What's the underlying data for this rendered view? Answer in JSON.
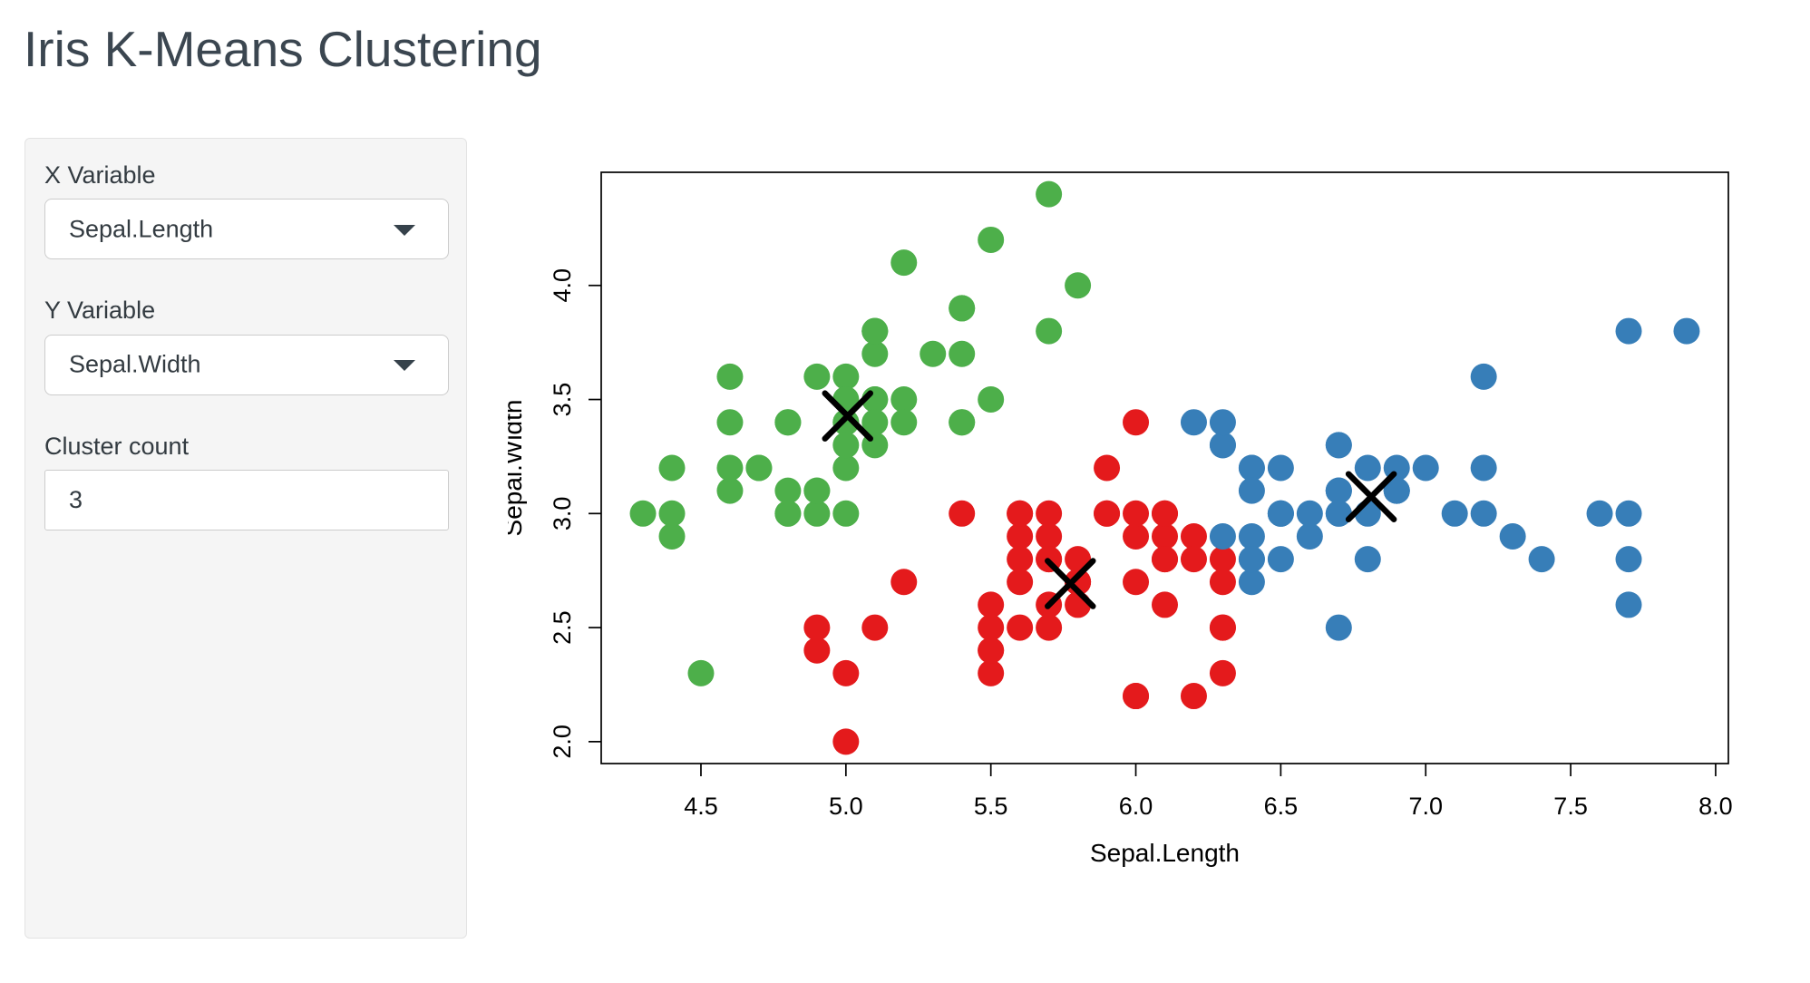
{
  "page": {
    "title": "Iris K-Means Clustering"
  },
  "sidebar": {
    "x_variable": {
      "label": "X Variable",
      "value": "Sepal.Length"
    },
    "y_variable": {
      "label": "Y Variable",
      "value": "Sepal.Width"
    },
    "cluster_count": {
      "label": "Cluster count",
      "value": "3"
    }
  },
  "chart_data": {
    "type": "scatter",
    "title": "",
    "xlabel": "Sepal.Length",
    "ylabel": "Sepal.Width",
    "xlim": [
      4.156,
      8.044
    ],
    "ylim": [
      1.904,
      4.496
    ],
    "x_ticks": [
      "4.5",
      "5.0",
      "5.5",
      "6.0",
      "6.5",
      "7.0",
      "7.5",
      "8.0"
    ],
    "y_ticks": [
      "2.0",
      "2.5",
      "3.0",
      "3.5",
      "4.0"
    ],
    "grid": false,
    "legend": "none",
    "point_radius_px": 14.5,
    "axis_color": "#000000",
    "series": [
      {
        "name": "cluster-green",
        "color": "#4DAF4A",
        "points": [
          [
            5.1,
            3.5
          ],
          [
            4.9,
            3.0
          ],
          [
            4.7,
            3.2
          ],
          [
            4.6,
            3.1
          ],
          [
            5.0,
            3.6
          ],
          [
            5.4,
            3.9
          ],
          [
            4.6,
            3.4
          ],
          [
            5.0,
            3.4
          ],
          [
            4.4,
            2.9
          ],
          [
            4.9,
            3.1
          ],
          [
            5.4,
            3.7
          ],
          [
            4.8,
            3.4
          ],
          [
            4.8,
            3.0
          ],
          [
            4.3,
            3.0
          ],
          [
            5.8,
            4.0
          ],
          [
            5.7,
            4.4
          ],
          [
            5.4,
            3.9
          ],
          [
            5.1,
            3.5
          ],
          [
            5.7,
            3.8
          ],
          [
            5.1,
            3.8
          ],
          [
            5.4,
            3.4
          ],
          [
            5.1,
            3.7
          ],
          [
            4.6,
            3.6
          ],
          [
            5.1,
            3.3
          ],
          [
            4.8,
            3.4
          ],
          [
            5.0,
            3.0
          ],
          [
            5.0,
            3.4
          ],
          [
            5.2,
            3.5
          ],
          [
            5.2,
            3.4
          ],
          [
            4.7,
            3.2
          ],
          [
            4.8,
            3.1
          ],
          [
            5.4,
            3.4
          ],
          [
            5.2,
            4.1
          ],
          [
            5.5,
            4.2
          ],
          [
            4.9,
            3.1
          ],
          [
            5.0,
            3.2
          ],
          [
            5.5,
            3.5
          ],
          [
            4.9,
            3.6
          ],
          [
            4.4,
            3.0
          ],
          [
            5.1,
            3.4
          ],
          [
            5.0,
            3.5
          ],
          [
            4.5,
            2.3
          ],
          [
            4.4,
            3.2
          ],
          [
            5.0,
            3.5
          ],
          [
            5.1,
            3.8
          ],
          [
            4.8,
            3.0
          ],
          [
            5.1,
            3.8
          ],
          [
            4.6,
            3.2
          ],
          [
            5.3,
            3.7
          ],
          [
            5.0,
            3.3
          ]
        ]
      },
      {
        "name": "cluster-red",
        "color": "#E41A1C",
        "points": [
          [
            5.5,
            2.3
          ],
          [
            4.9,
            2.4
          ],
          [
            5.2,
            2.7
          ],
          [
            5.0,
            2.0
          ],
          [
            5.9,
            3.0
          ],
          [
            6.0,
            2.2
          ],
          [
            6.1,
            2.9
          ],
          [
            5.6,
            2.9
          ],
          [
            5.6,
            3.0
          ],
          [
            5.8,
            2.7
          ],
          [
            6.2,
            2.2
          ],
          [
            5.6,
            2.5
          ],
          [
            5.9,
            3.2
          ],
          [
            6.1,
            2.8
          ],
          [
            6.3,
            2.5
          ],
          [
            6.1,
            2.8
          ],
          [
            6.0,
            2.9
          ],
          [
            5.7,
            2.6
          ],
          [
            5.5,
            2.4
          ],
          [
            5.5,
            2.4
          ],
          [
            5.8,
            2.7
          ],
          [
            6.0,
            2.7
          ],
          [
            5.4,
            3.0
          ],
          [
            6.0,
            3.4
          ],
          [
            6.3,
            2.3
          ],
          [
            5.6,
            3.0
          ],
          [
            5.5,
            2.5
          ],
          [
            5.5,
            2.6
          ],
          [
            6.1,
            3.0
          ],
          [
            5.8,
            2.6
          ],
          [
            5.0,
            2.3
          ],
          [
            5.6,
            2.7
          ],
          [
            5.7,
            3.0
          ],
          [
            5.7,
            2.9
          ],
          [
            6.2,
            2.9
          ],
          [
            5.1,
            2.5
          ],
          [
            5.7,
            2.8
          ],
          [
            5.7,
            2.8
          ],
          [
            5.8,
            2.7
          ],
          [
            4.9,
            2.5
          ],
          [
            5.7,
            2.5
          ],
          [
            5.8,
            2.8
          ],
          [
            6.0,
            2.2
          ],
          [
            5.6,
            2.8
          ],
          [
            6.3,
            2.7
          ],
          [
            6.2,
            2.8
          ],
          [
            6.1,
            3.0
          ],
          [
            6.3,
            2.8
          ],
          [
            6.1,
            2.6
          ],
          [
            6.0,
            3.0
          ],
          [
            5.8,
            2.7
          ],
          [
            6.3,
            2.5
          ],
          [
            5.9,
            3.0
          ]
        ]
      },
      {
        "name": "cluster-blue",
        "color": "#377EB8",
        "points": [
          [
            7.0,
            3.2
          ],
          [
            6.4,
            3.2
          ],
          [
            6.9,
            3.1
          ],
          [
            6.5,
            2.8
          ],
          [
            6.3,
            3.3
          ],
          [
            6.6,
            2.9
          ],
          [
            6.7,
            3.1
          ],
          [
            6.4,
            2.9
          ],
          [
            6.6,
            3.0
          ],
          [
            6.8,
            2.8
          ],
          [
            6.7,
            3.0
          ],
          [
            6.7,
            3.1
          ],
          [
            6.3,
            3.3
          ],
          [
            7.1,
            3.0
          ],
          [
            6.3,
            2.9
          ],
          [
            6.5,
            3.0
          ],
          [
            7.6,
            3.0
          ],
          [
            7.3,
            2.9
          ],
          [
            6.7,
            2.5
          ],
          [
            7.2,
            3.6
          ],
          [
            6.5,
            3.2
          ],
          [
            6.4,
            2.7
          ],
          [
            6.8,
            3.0
          ],
          [
            6.4,
            3.2
          ],
          [
            6.5,
            3.0
          ],
          [
            7.7,
            3.8
          ],
          [
            7.7,
            2.6
          ],
          [
            6.9,
            3.2
          ],
          [
            7.7,
            2.8
          ],
          [
            6.7,
            3.3
          ],
          [
            7.2,
            3.2
          ],
          [
            6.4,
            2.8
          ],
          [
            7.2,
            3.0
          ],
          [
            7.4,
            2.8
          ],
          [
            7.9,
            3.8
          ],
          [
            6.4,
            2.8
          ],
          [
            7.7,
            3.0
          ],
          [
            6.3,
            3.4
          ],
          [
            6.4,
            3.1
          ],
          [
            6.9,
            3.1
          ],
          [
            6.7,
            3.1
          ],
          [
            6.9,
            3.1
          ],
          [
            6.8,
            3.2
          ],
          [
            6.7,
            3.3
          ],
          [
            6.7,
            3.0
          ],
          [
            6.5,
            3.0
          ],
          [
            6.2,
            3.4
          ]
        ]
      }
    ],
    "centroids": {
      "marker": "x",
      "color": "#000000",
      "points": [
        [
          5.006,
          3.428
        ],
        [
          5.774,
          2.693
        ],
        [
          6.812,
          3.074
        ]
      ]
    }
  }
}
